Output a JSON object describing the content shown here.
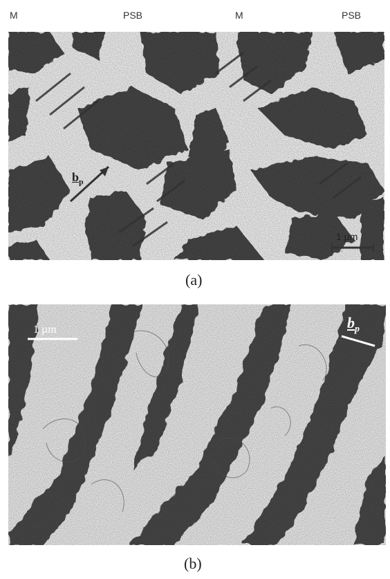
{
  "figure": {
    "top_labels": [
      "M",
      "PSB",
      "M",
      "PSB"
    ],
    "panel_a": {
      "caption": "(a)",
      "burgers_vector_label": "b",
      "burgers_vector_subscript": "p",
      "scale_bar_label": "1 µm"
    },
    "panel_b": {
      "caption": "(b)",
      "burgers_vector_label": "b",
      "burgers_vector_subscript": "p",
      "scale_bar_label": "1 µm"
    }
  }
}
